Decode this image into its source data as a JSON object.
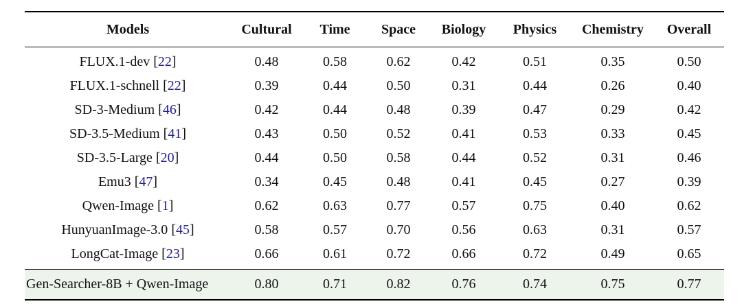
{
  "table": {
    "columns": [
      "Models",
      "Cultural",
      "Time",
      "Space",
      "Biology",
      "Physics",
      "Chemistry",
      "Overall"
    ],
    "rows": [
      {
        "model": "FLUX.1-dev",
        "cite": "22",
        "values": [
          "0.48",
          "0.58",
          "0.62",
          "0.42",
          "0.51",
          "0.35",
          "0.50"
        ]
      },
      {
        "model": "FLUX.1-schnell",
        "cite": "22",
        "values": [
          "0.39",
          "0.44",
          "0.50",
          "0.31",
          "0.44",
          "0.26",
          "0.40"
        ]
      },
      {
        "model": "SD-3-Medium",
        "cite": "46",
        "values": [
          "0.42",
          "0.44",
          "0.48",
          "0.39",
          "0.47",
          "0.29",
          "0.42"
        ]
      },
      {
        "model": "SD-3.5-Medium",
        "cite": "41",
        "values": [
          "0.43",
          "0.50",
          "0.52",
          "0.41",
          "0.53",
          "0.33",
          "0.45"
        ]
      },
      {
        "model": "SD-3.5-Large",
        "cite": "20",
        "values": [
          "0.44",
          "0.50",
          "0.58",
          "0.44",
          "0.52",
          "0.31",
          "0.46"
        ]
      },
      {
        "model": "Emu3",
        "cite": "47",
        "values": [
          "0.34",
          "0.45",
          "0.48",
          "0.41",
          "0.45",
          "0.27",
          "0.39"
        ]
      },
      {
        "model": "Qwen-Image",
        "cite": "1",
        "values": [
          "0.62",
          "0.63",
          "0.77",
          "0.57",
          "0.75",
          "0.40",
          "0.62"
        ]
      },
      {
        "model": "HunyuanImage-3.0",
        "cite": "45",
        "values": [
          "0.58",
          "0.57",
          "0.70",
          "0.56",
          "0.63",
          "0.31",
          "0.57"
        ]
      },
      {
        "model": "LongCat-Image",
        "cite": "23",
        "values": [
          "0.66",
          "0.61",
          "0.72",
          "0.66",
          "0.72",
          "0.49",
          "0.65"
        ]
      }
    ],
    "highlight_row": {
      "model": "Gen-Searcher-8B + Qwen-Image",
      "values": [
        "0.80",
        "0.71",
        "0.82",
        "0.76",
        "0.74",
        "0.75",
        "0.77"
      ]
    }
  },
  "colors": {
    "citation_link": "#22228c",
    "highlight_row_bg": "#ecf4ec",
    "rule": "#000000"
  }
}
